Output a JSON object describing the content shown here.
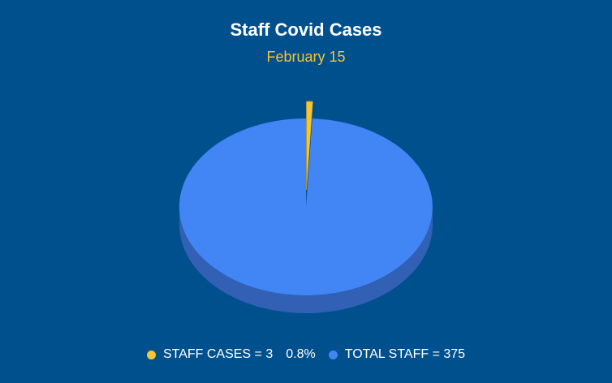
{
  "chart_data": {
    "type": "pie",
    "title": "Staff Covid Cases",
    "subtitle": "February 15",
    "slices": [
      {
        "label": "STAFF CASES = 3",
        "value": 3,
        "percent_label": "0.8%",
        "color": "#f6c531"
      },
      {
        "label": "TOTAL STAFF = 375",
        "value": 375,
        "color": "#4285f4"
      }
    ],
    "legend_position": "bottom",
    "style": "3d",
    "colors": {
      "background": "#00508e",
      "title": "#ffffff",
      "subtitle": "#f6c531",
      "legend_text": "#ffffff",
      "side_shade": "#3160b5"
    }
  }
}
